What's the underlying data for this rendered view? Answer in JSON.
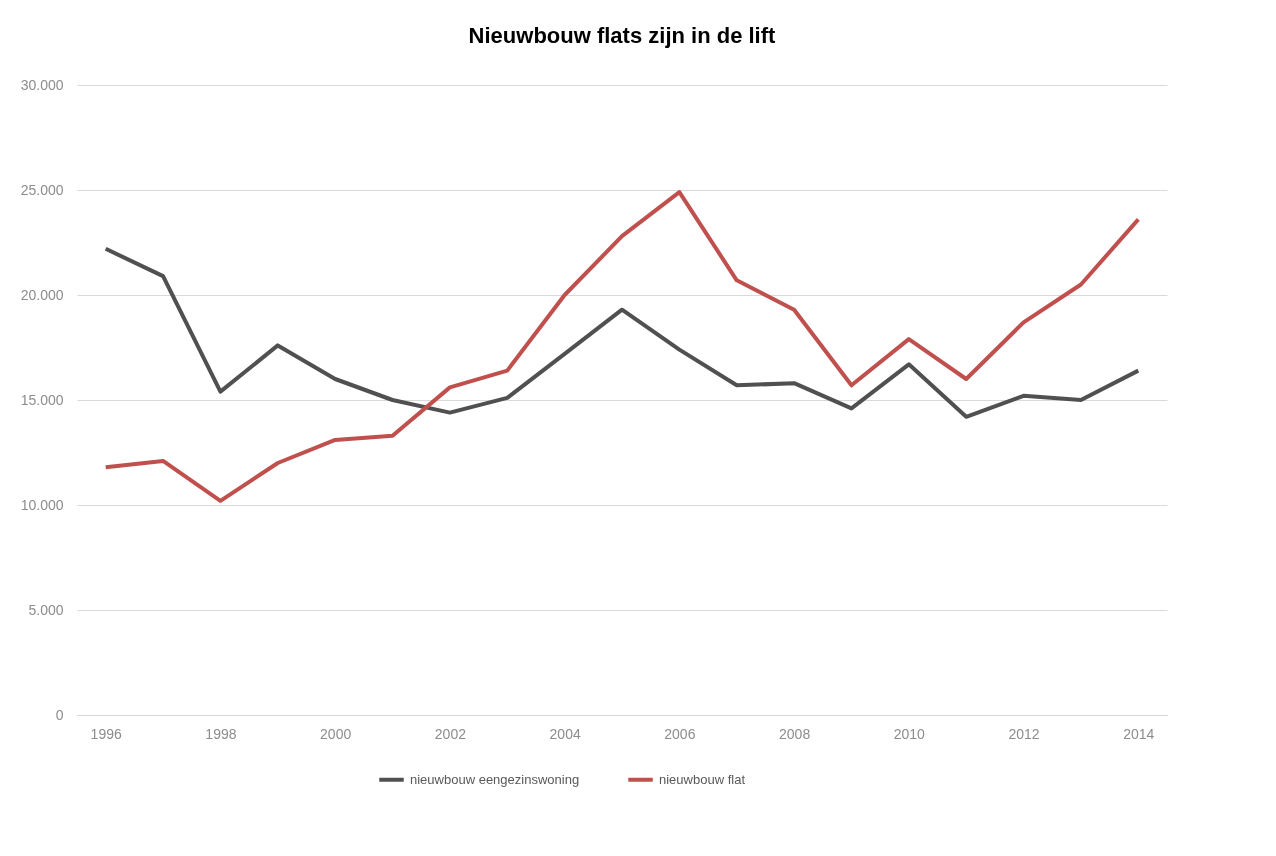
{
  "chart_data": {
    "type": "line",
    "title": "Nieuwbouw flats zijn in de lift",
    "categories": [
      "1996",
      null,
      "1998",
      null,
      "2000",
      null,
      "2002",
      null,
      "2004",
      null,
      "2006",
      null,
      "2008",
      null,
      "2010",
      null,
      "2012",
      null,
      "2014"
    ],
    "series": [
      {
        "name": "nieuwbouw eengezinswoning",
        "color": "#505050",
        "values": [
          22200,
          20900,
          15400,
          17600,
          16000,
          15000,
          14400,
          15100,
          17200,
          19300,
          17400,
          15700,
          15800,
          14600,
          16700,
          14200,
          15200,
          15000,
          16400
        ]
      },
      {
        "name": "nieuwbouw flat",
        "color": "#c0504d",
        "values": [
          11800,
          12100,
          10200,
          12000,
          13100,
          13300,
          15600,
          16400,
          20000,
          22800,
          24900,
          20700,
          19300,
          15700,
          17900,
          16000,
          18700,
          20500,
          23600
        ]
      }
    ],
    "ylim": [
      0,
      30000
    ],
    "yticks": [
      {
        "value": 0,
        "label": "0"
      },
      {
        "value": 5000,
        "label": "5.000"
      },
      {
        "value": 10000,
        "label": "10.000"
      },
      {
        "value": 15000,
        "label": "15.000"
      },
      {
        "value": 20000,
        "label": "20.000"
      },
      {
        "value": 25000,
        "label": "25.000"
      },
      {
        "value": 30000,
        "label": "30.000"
      }
    ],
    "grid": "y",
    "legend": "bottom",
    "marker": "none",
    "line_style": "solid"
  }
}
